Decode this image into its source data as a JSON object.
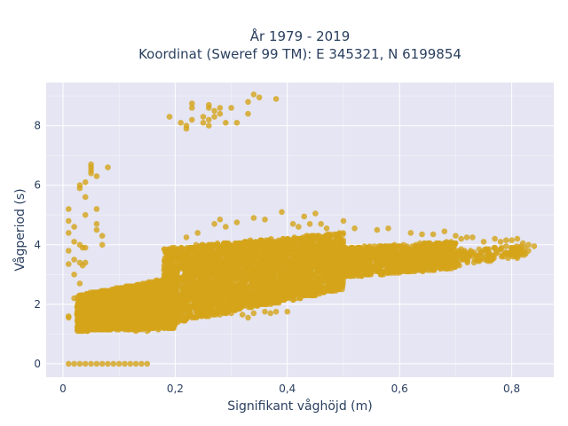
{
  "chart_data": {
    "type": "scatter",
    "title": "År 1979 - 2019",
    "subtitle": "Koordinat (Sweref 99 TM): E 345321, N 6199854",
    "xlabel": "Signifikant våghöjd (m)",
    "ylabel": "Vågperiod (s)",
    "xlim": [
      -0.03,
      0.875
    ],
    "ylim": [
      -0.45,
      9.45
    ],
    "xticks": [
      0,
      0.2,
      0.4,
      0.6,
      0.8
    ],
    "xtick_labels": [
      "0",
      "0,2",
      "0,4",
      "0,6",
      "0,8"
    ],
    "yticks": [
      0,
      2,
      4,
      6,
      8
    ],
    "ytick_labels": [
      "0",
      "2",
      "4",
      "6",
      "8"
    ],
    "grid": true,
    "marker_color": "#d4a419",
    "background_color": "#e5e5f3",
    "series": [
      {
        "points": [
          [
            0.01,
            0.0
          ],
          [
            0.02,
            0.0
          ],
          [
            0.03,
            0.0
          ],
          [
            0.04,
            0.0
          ],
          [
            0.05,
            0.0
          ],
          [
            0.06,
            0.0
          ],
          [
            0.07,
            0.0
          ],
          [
            0.08,
            0.0
          ],
          [
            0.09,
            0.0
          ],
          [
            0.1,
            0.0
          ],
          [
            0.11,
            0.0
          ],
          [
            0.12,
            0.0
          ],
          [
            0.13,
            0.0
          ],
          [
            0.14,
            0.0
          ],
          [
            0.15,
            0.0
          ],
          [
            0.01,
            1.6
          ],
          [
            0.01,
            1.55
          ],
          [
            0.01,
            3.35
          ],
          [
            0.01,
            3.8
          ],
          [
            0.01,
            4.4
          ],
          [
            0.01,
            4.8
          ],
          [
            0.01,
            5.2
          ],
          [
            0.02,
            3.5
          ],
          [
            0.02,
            4.1
          ],
          [
            0.02,
            4.6
          ],
          [
            0.02,
            3.0
          ],
          [
            0.02,
            2.2
          ],
          [
            0.03,
            5.9
          ],
          [
            0.03,
            6.0
          ],
          [
            0.03,
            4.0
          ],
          [
            0.03,
            3.4
          ],
          [
            0.03,
            2.7
          ],
          [
            0.035,
            3.3
          ],
          [
            0.035,
            3.9
          ],
          [
            0.04,
            6.1
          ],
          [
            0.04,
            3.9
          ],
          [
            0.04,
            3.4
          ],
          [
            0.04,
            5.6
          ],
          [
            0.04,
            5.0
          ],
          [
            0.05,
            6.7
          ],
          [
            0.05,
            6.6
          ],
          [
            0.05,
            6.5
          ],
          [
            0.05,
            6.4
          ],
          [
            0.06,
            6.3
          ],
          [
            0.06,
            5.2
          ],
          [
            0.06,
            4.7
          ],
          [
            0.06,
            4.5
          ],
          [
            0.07,
            4.0
          ],
          [
            0.07,
            4.3
          ],
          [
            0.08,
            6.6
          ],
          [
            0.19,
            8.3
          ],
          [
            0.21,
            8.1
          ],
          [
            0.22,
            8.0
          ],
          [
            0.22,
            7.9
          ],
          [
            0.23,
            8.2
          ],
          [
            0.23,
            8.6
          ],
          [
            0.23,
            8.75
          ],
          [
            0.25,
            8.3
          ],
          [
            0.25,
            8.1
          ],
          [
            0.26,
            8.2
          ],
          [
            0.26,
            8.0
          ],
          [
            0.26,
            8.6
          ],
          [
            0.26,
            8.7
          ],
          [
            0.27,
            8.5
          ],
          [
            0.27,
            8.3
          ],
          [
            0.28,
            8.4
          ],
          [
            0.28,
            8.6
          ],
          [
            0.29,
            8.1
          ],
          [
            0.3,
            8.6
          ],
          [
            0.31,
            8.1
          ],
          [
            0.33,
            8.4
          ],
          [
            0.33,
            8.8
          ],
          [
            0.34,
            9.05
          ],
          [
            0.35,
            8.95
          ],
          [
            0.38,
            8.9
          ],
          [
            0.43,
            4.95
          ],
          [
            0.45,
            5.05
          ],
          [
            0.46,
            4.7
          ],
          [
            0.5,
            4.8
          ],
          [
            0.52,
            4.55
          ],
          [
            0.56,
            4.5
          ],
          [
            0.58,
            4.55
          ],
          [
            0.62,
            4.4
          ],
          [
            0.64,
            4.35
          ],
          [
            0.66,
            4.35
          ],
          [
            0.68,
            4.45
          ],
          [
            0.7,
            4.3
          ],
          [
            0.71,
            4.2
          ],
          [
            0.72,
            4.25
          ],
          [
            0.73,
            4.25
          ],
          [
            0.75,
            4.1
          ],
          [
            0.77,
            4.2
          ],
          [
            0.78,
            4.1
          ],
          [
            0.79,
            4.15
          ],
          [
            0.8,
            4.15
          ],
          [
            0.81,
            4.2
          ],
          [
            0.82,
            4.05
          ],
          [
            0.83,
            4.0
          ],
          [
            0.84,
            3.95
          ],
          [
            0.71,
            3.85
          ],
          [
            0.72,
            3.65
          ],
          [
            0.74,
            3.55
          ],
          [
            0.75,
            3.8
          ],
          [
            0.76,
            3.7
          ],
          [
            0.78,
            3.85
          ],
          [
            0.79,
            3.95
          ],
          [
            0.8,
            3.8
          ],
          [
            0.81,
            3.85
          ],
          [
            0.68,
            3.6
          ],
          [
            0.69,
            3.4
          ],
          [
            0.7,
            3.5
          ],
          [
            0.73,
            3.7
          ],
          [
            0.77,
            3.9
          ],
          [
            0.22,
            4.25
          ],
          [
            0.24,
            4.4
          ],
          [
            0.27,
            4.7
          ],
          [
            0.28,
            4.85
          ],
          [
            0.29,
            4.6
          ],
          [
            0.31,
            4.75
          ],
          [
            0.34,
            4.9
          ],
          [
            0.36,
            4.85
          ],
          [
            0.39,
            5.1
          ],
          [
            0.41,
            4.7
          ],
          [
            0.42,
            4.6
          ],
          [
            0.44,
            4.7
          ],
          [
            0.47,
            4.55
          ],
          [
            0.2,
            1.35
          ],
          [
            0.23,
            1.55
          ],
          [
            0.26,
            1.6
          ],
          [
            0.28,
            1.65
          ],
          [
            0.3,
            1.7
          ],
          [
            0.32,
            1.65
          ],
          [
            0.34,
            1.7
          ],
          [
            0.36,
            1.75
          ],
          [
            0.38,
            1.75
          ],
          [
            0.4,
            1.75
          ],
          [
            0.33,
            1.55
          ],
          [
            0.37,
            1.7
          ],
          [
            0.1,
            1.15
          ],
          [
            0.13,
            1.1
          ],
          [
            0.15,
            1.1
          ],
          [
            0.17,
            1.15
          ],
          [
            0.19,
            1.2
          ]
        ]
      }
    ],
    "dense_bands": [
      {
        "x": [
          0.025,
          0.2
        ],
        "y_low": [
          1.1,
          1.2
        ],
        "y_high": [
          2.3,
          2.9
        ],
        "count": 2600
      },
      {
        "x": [
          0.18,
          0.5
        ],
        "y_low": [
          1.3,
          2.5
        ],
        "y_high": [
          3.9,
          4.4
        ],
        "count": 3400
      },
      {
        "x": [
          0.5,
          0.7
        ],
        "y_low": [
          2.9,
          3.2
        ],
        "y_high": [
          3.9,
          4.1
        ],
        "count": 1000
      },
      {
        "x": [
          0.7,
          0.83
        ],
        "y_low": [
          3.3,
          3.6
        ],
        "y_high": [
          3.8,
          4.0
        ],
        "count": 120
      }
    ]
  }
}
